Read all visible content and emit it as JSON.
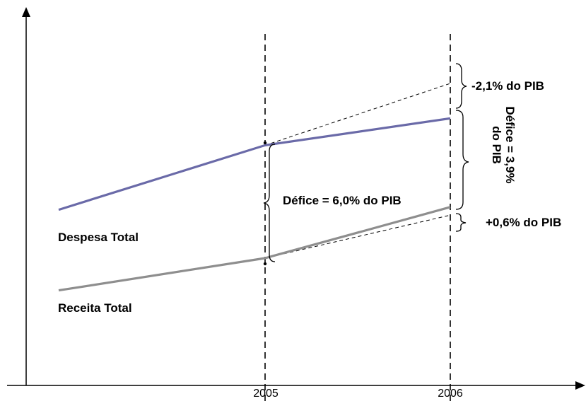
{
  "chart_data": {
    "type": "line",
    "x": [
      "",
      "2005",
      "2006"
    ],
    "tick_labels": [
      "2005",
      "2006"
    ],
    "series": [
      {
        "name": "Despesa Total",
        "color": "#6a6aa8",
        "points": [
          [
            0,
            0.38
          ],
          [
            1,
            0.62
          ],
          [
            2,
            0.72
          ]
        ]
      },
      {
        "name": "Receita Total",
        "color": "#8e8e8e",
        "points": [
          [
            0,
            0.08
          ],
          [
            1,
            0.2
          ],
          [
            2,
            0.39
          ]
        ]
      }
    ],
    "projections": [
      {
        "from": [
          1,
          0.62
        ],
        "to": [
          2,
          0.85
        ]
      },
      {
        "from": [
          1,
          0.2
        ],
        "to": [
          2,
          0.36
        ]
      }
    ],
    "annotations": {
      "deficit_2005": "Défice = 6,0% do PIB",
      "deficit_2006_line1": "Défice = 3,9%",
      "deficit_2006_line2": "do PIB",
      "expense_delta": "-2,1% do PIB",
      "revenue_delta": "+0,6% do PIB"
    },
    "grid": false,
    "legend": "none"
  }
}
